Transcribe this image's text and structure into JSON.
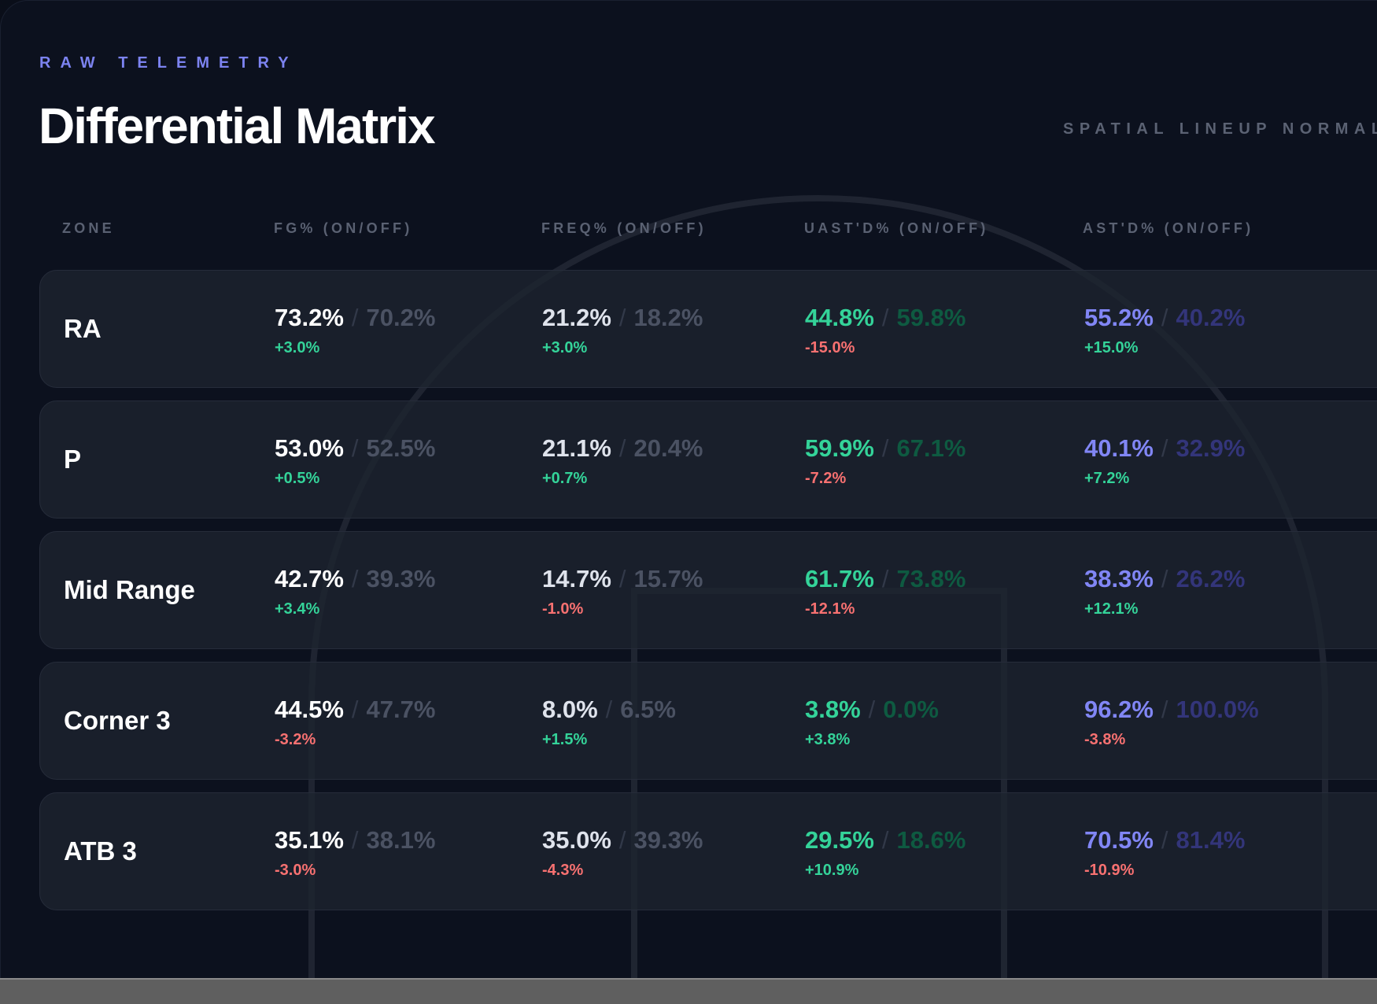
{
  "header": {
    "eyebrow": "RAW TELEMETRY",
    "title": "Differential Matrix",
    "subtitle": "SPATIAL LINEUP NORMAL"
  },
  "columns": [
    "ZONE",
    "FG% (ON/OFF)",
    "FREQ% (ON/OFF)",
    "UAST'D% (ON/OFF)",
    "AST'D% (ON/OFF)"
  ],
  "colors": {
    "positive": "#34d399",
    "negative": "#f87171",
    "fg_on": "#ffffff",
    "fg_off": "#4b5263",
    "freq_on": "#dfe3ec",
    "freq_off": "#4b5263",
    "uast_on": "#34d399",
    "uast_off": "#0e5a41",
    "ast_on": "#8186f5",
    "ast_off": "#33357a"
  },
  "rows": [
    {
      "zone": "RA",
      "fg": {
        "on": "73.2%",
        "off": "70.2%",
        "delta": "+3.0%"
      },
      "freq": {
        "on": "21.2%",
        "off": "18.2%",
        "delta": "+3.0%"
      },
      "uast": {
        "on": "44.8%",
        "off": "59.8%",
        "delta": "-15.0%"
      },
      "ast": {
        "on": "55.2%",
        "off": "40.2%",
        "delta": "+15.0%"
      }
    },
    {
      "zone": "P",
      "fg": {
        "on": "53.0%",
        "off": "52.5%",
        "delta": "+0.5%"
      },
      "freq": {
        "on": "21.1%",
        "off": "20.4%",
        "delta": "+0.7%"
      },
      "uast": {
        "on": "59.9%",
        "off": "67.1%",
        "delta": "-7.2%"
      },
      "ast": {
        "on": "40.1%",
        "off": "32.9%",
        "delta": "+7.2%"
      }
    },
    {
      "zone": "Mid Range",
      "fg": {
        "on": "42.7%",
        "off": "39.3%",
        "delta": "+3.4%"
      },
      "freq": {
        "on": "14.7%",
        "off": "15.7%",
        "delta": "-1.0%"
      },
      "uast": {
        "on": "61.7%",
        "off": "73.8%",
        "delta": "-12.1%"
      },
      "ast": {
        "on": "38.3%",
        "off": "26.2%",
        "delta": "+12.1%"
      }
    },
    {
      "zone": "Corner 3",
      "fg": {
        "on": "44.5%",
        "off": "47.7%",
        "delta": "-3.2%"
      },
      "freq": {
        "on": "8.0%",
        "off": "6.5%",
        "delta": "+1.5%"
      },
      "uast": {
        "on": "3.8%",
        "off": "0.0%",
        "delta": "+3.8%"
      },
      "ast": {
        "on": "96.2%",
        "off": "100.0%",
        "delta": "-3.8%"
      }
    },
    {
      "zone": "ATB 3",
      "fg": {
        "on": "35.1%",
        "off": "38.1%",
        "delta": "-3.0%"
      },
      "freq": {
        "on": "35.0%",
        "off": "39.3%",
        "delta": "-4.3%"
      },
      "uast": {
        "on": "29.5%",
        "off": "18.6%",
        "delta": "+10.9%"
      },
      "ast": {
        "on": "70.5%",
        "off": "81.4%",
        "delta": "-10.9%"
      }
    }
  ]
}
